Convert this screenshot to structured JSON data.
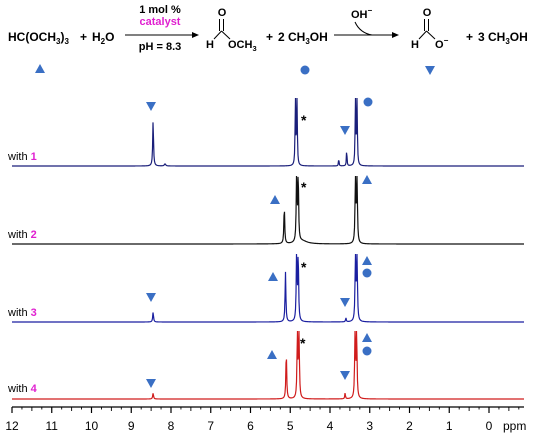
{
  "scheme": {
    "reactant": "HC(OCH₃)₃",
    "reactant_parts": [
      "HC(OCH",
      "3",
      ")",
      "3"
    ],
    "plus1": "+",
    "water": "H₂O",
    "water_parts": [
      "H",
      "2",
      "O"
    ],
    "cond_top": "1 mol %",
    "cond_catalyst": "catalyst",
    "cond_bottom": "pH = 8.3",
    "formate_ester_H": "H",
    "formate_ester_O": "O",
    "formate_ester_group": "OCH₃",
    "formate_ester_group_parts": [
      "OCH",
      "3"
    ],
    "plus2": "+",
    "methanol2": "2 CH₃OH",
    "methanol2_parts": [
      "2 CH",
      "3",
      "OH"
    ],
    "hydroxide": "OH⁻",
    "hydroxide_parts": [
      "OH",
      "−"
    ],
    "formate_H": "H",
    "formate_O_top": "O",
    "formate_O_minus": "O⁻",
    "formate_O_minus_parts": [
      "O",
      "−"
    ],
    "plus3": "+",
    "methanol3": "3 CH₃OH",
    "methanol3_parts": [
      "3 CH",
      "3",
      "OH"
    ]
  },
  "spectra": [
    {
      "label_prefix": "with ",
      "label_num": "1",
      "color": "#1a1f7a"
    },
    {
      "label_prefix": "with ",
      "label_num": "2",
      "color": "#111111"
    },
    {
      "label_prefix": "with ",
      "label_num": "3",
      "color": "#1a1fa0"
    },
    {
      "label_prefix": "with ",
      "label_num": "4",
      "color": "#d01c1c"
    }
  ],
  "marker_colors": {
    "triangle": "#3a6fc4",
    "circle": "#3a6fc4",
    "star": "#000000"
  },
  "catalyst_color": "#e020d0",
  "axis": {
    "ticks": [
      "12",
      "11",
      "10",
      "9",
      "8",
      "7",
      "6",
      "5",
      "4",
      "3",
      "2",
      "1",
      "0"
    ],
    "unit": "ppm",
    "range": [
      12,
      -0.8
    ]
  },
  "chart_data": {
    "type": "line",
    "x_unit": "ppm",
    "xlim": [
      12,
      -0.8
    ],
    "series": [
      {
        "name": "with 1",
        "peaks_ppm": [
          8.45,
          8.15,
          4.87,
          4.83,
          3.78,
          3.58,
          3.36,
          3.32
        ]
      },
      {
        "name": "with 2",
        "peaks_ppm": [
          5.15,
          4.84,
          4.8,
          3.36,
          3.32
        ]
      },
      {
        "name": "with 3",
        "peaks_ppm": [
          8.45,
          5.12,
          4.84,
          4.8,
          3.6,
          3.36,
          3.32
        ]
      },
      {
        "name": "with 4",
        "peaks_ppm": [
          8.45,
          5.1,
          4.82,
          4.78,
          3.62,
          3.37,
          3.33
        ]
      }
    ]
  }
}
